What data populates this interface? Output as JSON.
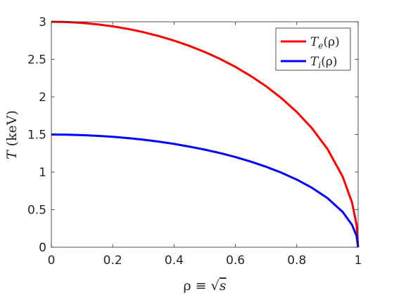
{
  "chart_data": {
    "type": "line",
    "title": "",
    "xlabel": {
      "main": "ρ ≡ √",
      "var": "s"
    },
    "ylabel": {
      "var": "T",
      "unit": "(keV)"
    },
    "xlim": [
      0,
      1
    ],
    "ylim": [
      0,
      3
    ],
    "x_ticks": [
      0,
      0.2,
      0.4,
      0.6,
      0.8,
      1
    ],
    "x_tick_labels": [
      "0",
      "0.2",
      "0.4",
      "0.6",
      "0.8",
      "1"
    ],
    "y_ticks": [
      0,
      0.5,
      1,
      1.5,
      2,
      2.5,
      3
    ],
    "y_tick_labels": [
      "0",
      "0.5",
      "1",
      "1.5",
      "2",
      "2.5",
      "3"
    ],
    "grid": false,
    "legend_position": "top-right",
    "x": [
      0,
      0.05,
      0.1,
      0.15,
      0.2,
      0.25,
      0.3,
      0.35,
      0.4,
      0.45,
      0.5,
      0.55,
      0.6,
      0.65,
      0.7,
      0.75,
      0.8,
      0.85,
      0.9,
      0.95,
      0.98,
      0.995,
      1
    ],
    "series": [
      {
        "name": {
          "var": "T",
          "sub": "e",
          "arg": "(ρ)"
        },
        "color": "#ff0000",
        "values": [
          3.0,
          2.996,
          2.985,
          2.966,
          2.939,
          2.905,
          2.862,
          2.81,
          2.749,
          2.679,
          2.598,
          2.506,
          2.4,
          2.279,
          2.142,
          1.984,
          1.8,
          1.581,
          1.308,
          0.937,
          0.597,
          0.3,
          0.0
        ]
      },
      {
        "name": {
          "var": "T",
          "sub": "i",
          "arg": "(ρ)"
        },
        "color": "#0000ff",
        "values": [
          1.5,
          1.498,
          1.492,
          1.483,
          1.47,
          1.452,
          1.431,
          1.405,
          1.375,
          1.339,
          1.299,
          1.253,
          1.2,
          1.14,
          1.071,
          0.992,
          0.9,
          0.79,
          0.654,
          0.468,
          0.298,
          0.15,
          0.0
        ]
      }
    ]
  }
}
